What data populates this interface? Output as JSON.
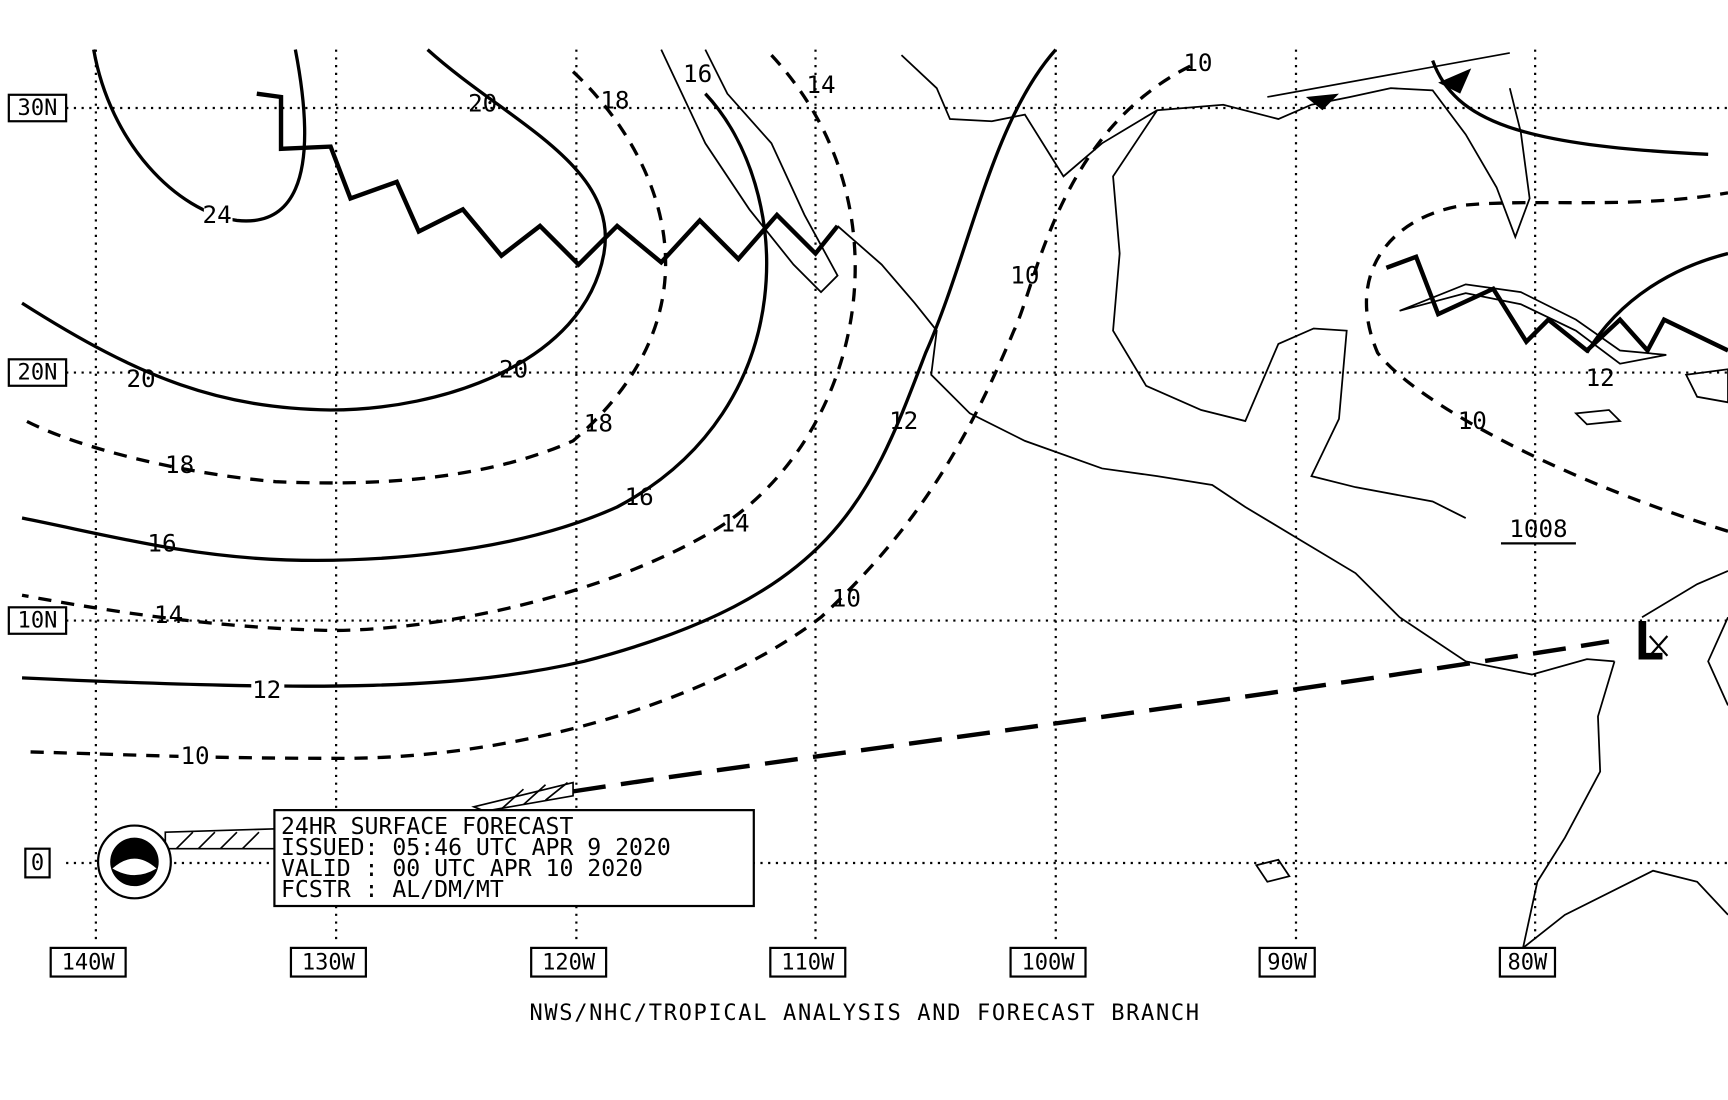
{
  "lat_labels": [
    "30N",
    "20N",
    "10N",
    "0"
  ],
  "lon_labels": [
    "140W",
    "130W",
    "120W",
    "110W",
    "100W",
    "90W",
    "80W"
  ],
  "contour_labels": [
    "24",
    "20",
    "20",
    "20",
    "18",
    "18",
    "18",
    "16",
    "16",
    "16",
    "14",
    "14",
    "14",
    "12",
    "12",
    "12",
    "10",
    "10",
    "10",
    "10",
    "10"
  ],
  "pressure_label": "1008",
  "low_symbol": "L",
  "info_box": [
    "24HR SURFACE FORECAST",
    "ISSUED:  05:46 UTC APR 9 2020",
    "VALID :  00 UTC APR 10 2020",
    "FCSTR :  AL/DM/MT"
  ],
  "footer": "NWS/NHC/TROPICAL ANALYSIS AND FORECAST BRANCH"
}
